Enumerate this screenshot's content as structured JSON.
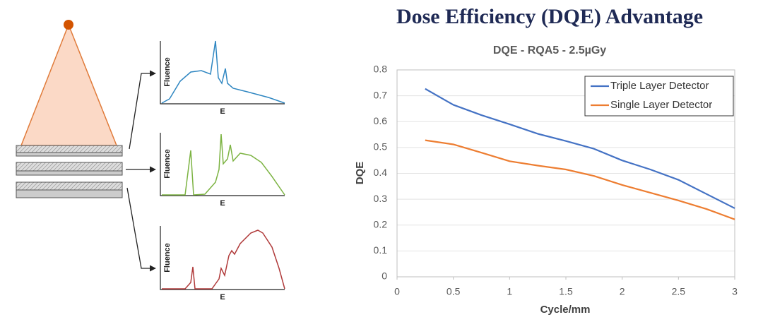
{
  "header": {
    "title": "Dose Efficiency (DQE) Advantage"
  },
  "diagram": {
    "panels": [
      {
        "y_label": "Fluence",
        "x_label": "E"
      },
      {
        "y_label": "Fluence",
        "x_label": "E"
      },
      {
        "y_label": "Fluence",
        "x_label": "E"
      }
    ]
  },
  "chart_data": {
    "type": "line",
    "title": "DQE - RQA5 - 2.5µGy",
    "x_label": "Cycle/mm",
    "y_label": "DQE",
    "x": [
      0.25,
      0.5,
      0.75,
      1,
      1.25,
      1.5,
      1.75,
      2,
      2.25,
      2.5,
      2.75,
      3
    ],
    "series": [
      {
        "name": "Triple Layer Detector",
        "color": "#4472c4",
        "values": [
          0.727,
          0.665,
          0.625,
          0.59,
          0.553,
          0.525,
          0.495,
          0.45,
          0.415,
          0.375,
          0.32,
          0.265
        ]
      },
      {
        "name": "Single Layer Detector",
        "color": "#ed7d31",
        "values": [
          0.528,
          0.512,
          0.48,
          0.447,
          0.43,
          0.415,
          0.39,
          0.355,
          0.325,
          0.295,
          0.262,
          0.222
        ]
      }
    ],
    "xlim": [
      0,
      3
    ],
    "xticks": [
      0,
      0.5,
      1,
      1.5,
      2,
      2.5,
      3
    ],
    "ylim": [
      0,
      0.8
    ],
    "yticks": [
      0,
      0.1,
      0.2,
      0.3,
      0.4,
      0.5,
      0.6,
      0.7,
      0.8
    ],
    "grid": true,
    "legend": "upper right"
  }
}
